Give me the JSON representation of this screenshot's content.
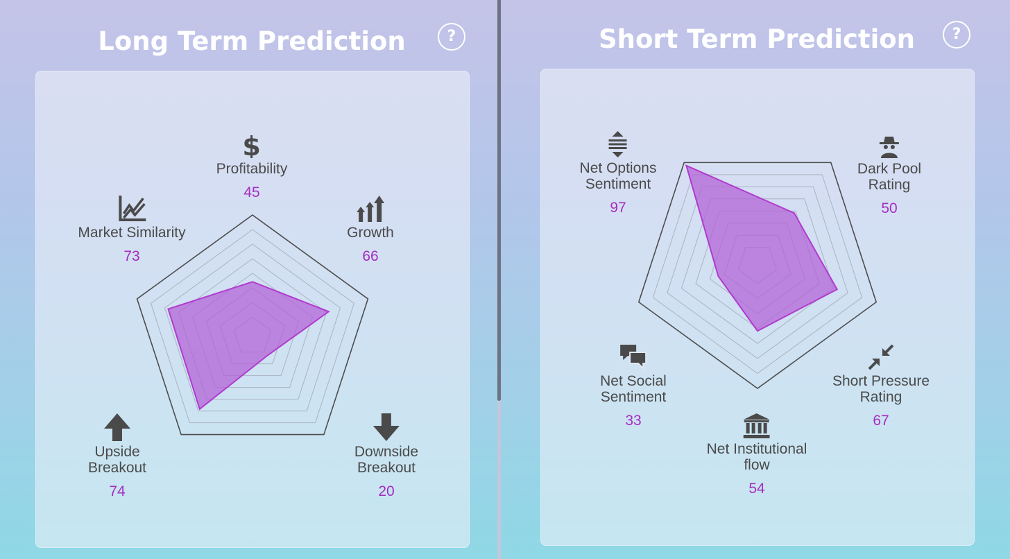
{
  "colors": {
    "accent": "#a62dc0",
    "fill": "#b35fd6",
    "label": "#4a4a4a",
    "title": "#ffffff"
  },
  "long_term": {
    "title": "Long Term Prediction",
    "help_label": "?",
    "axes": [
      {
        "icon": "dollar-sign-icon",
        "label": "Profitability",
        "value": "45"
      },
      {
        "icon": "growth-arrows-icon",
        "label": "Growth",
        "value": "66"
      },
      {
        "icon": "arrow-down-icon",
        "label": "Downside\nBreakout",
        "value": "20"
      },
      {
        "icon": "arrow-up-icon",
        "label": "Upside\nBreakout",
        "value": "74"
      },
      {
        "icon": "line-chart-icon",
        "label": "Market Similarity",
        "value": "73"
      }
    ]
  },
  "short_term": {
    "title": "Short Term Prediction",
    "help_label": "?",
    "axes": [
      {
        "icon": "spy-icon",
        "label": "Dark Pool\nRating",
        "value": "50"
      },
      {
        "icon": "compress-arrows-icon",
        "label": "Short Pressure\nRating",
        "value": "67"
      },
      {
        "icon": "institution-building-icon",
        "label": "Net Institutional\nflow",
        "value": "54"
      },
      {
        "icon": "chat-bubbles-icon",
        "label": "Net Social\nSentiment",
        "value": "33"
      },
      {
        "icon": "vertical-arrows-icon",
        "label": "Net Options\nSentiment",
        "value": "97"
      }
    ]
  }
}
